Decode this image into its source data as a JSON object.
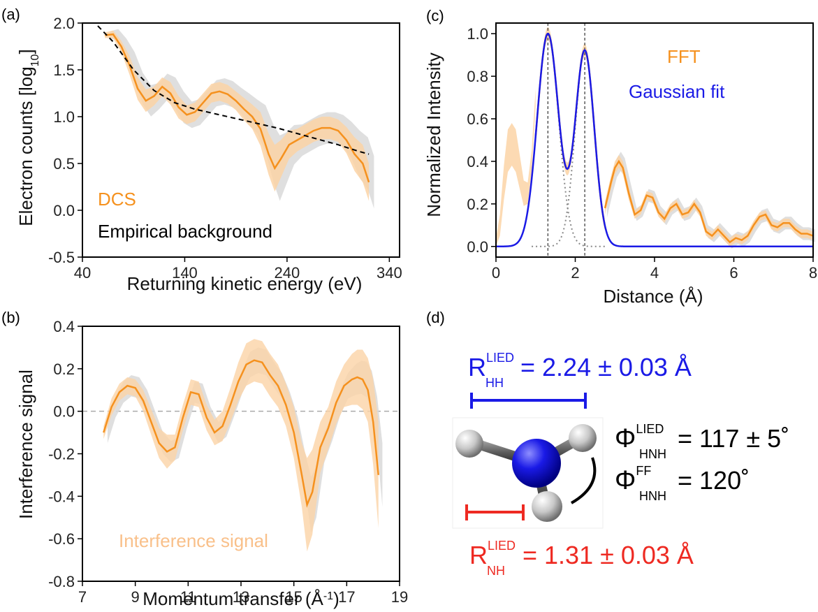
{
  "colors": {
    "orange": "#f5911e",
    "orange_band": "#fbd3a6",
    "gray_band": "#d9d9d9",
    "blue": "#1a1ae6",
    "red": "#ee2a22",
    "black": "#000000",
    "grid_dash": "#999999"
  },
  "panel_labels": {
    "a": "(a)",
    "b": "(b)",
    "c": "(c)",
    "d": "(d)"
  },
  "chart_data": [
    {
      "id": "a",
      "type": "line",
      "xlabel": "Returning kinetic energy (eV)",
      "ylabel_main": "Electron counts [log",
      "ylabel_sub": "10",
      "ylabel_end": "]",
      "xlim": [
        40,
        350
      ],
      "ylim": [
        -0.5,
        2.0
      ],
      "xticks": [
        40,
        140,
        240,
        340
      ],
      "yticks": [
        -0.5,
        0.0,
        0.5,
        1.0,
        1.5,
        2.0
      ],
      "ytick_labels": [
        "-0.5",
        "0.0",
        "0.5",
        "1.0",
        "1.5",
        "2.0"
      ],
      "legend": [
        {
          "label": "DCS",
          "color": "#f5911e"
        },
        {
          "label": "Empirical background",
          "color": "#000000"
        }
      ],
      "series": [
        {
          "name": "DCS",
          "x": [
            62,
            70,
            78,
            86,
            94,
            102,
            110,
            118,
            126,
            134,
            142,
            150,
            158,
            166,
            174,
            182,
            190,
            198,
            206,
            214,
            222,
            228,
            234,
            242,
            250,
            258,
            266,
            274,
            282,
            290,
            298,
            306,
            314,
            320
          ],
          "y": [
            1.87,
            1.88,
            1.75,
            1.55,
            1.3,
            1.17,
            1.22,
            1.32,
            1.25,
            1.1,
            1.02,
            1.05,
            1.15,
            1.25,
            1.27,
            1.24,
            1.17,
            1.08,
            1.0,
            0.87,
            0.6,
            0.45,
            0.55,
            0.7,
            0.75,
            0.8,
            0.85,
            0.88,
            0.88,
            0.85,
            0.75,
            0.6,
            0.5,
            0.3
          ],
          "err": [
            0.03,
            0.04,
            0.06,
            0.1,
            0.12,
            0.12,
            0.1,
            0.1,
            0.12,
            0.12,
            0.1,
            0.1,
            0.1,
            0.1,
            0.1,
            0.1,
            0.1,
            0.12,
            0.13,
            0.18,
            0.22,
            0.25,
            0.2,
            0.15,
            0.12,
            0.12,
            0.12,
            0.12,
            0.12,
            0.12,
            0.14,
            0.18,
            0.2,
            0.2
          ]
        },
        {
          "name": "Empirical background",
          "x": [
            55,
            70,
            90,
            110,
            130,
            150,
            170,
            190,
            210,
            230,
            250,
            270,
            290,
            310,
            320
          ],
          "y": [
            1.97,
            1.8,
            1.5,
            1.28,
            1.15,
            1.08,
            1.03,
            0.98,
            0.93,
            0.88,
            0.82,
            0.76,
            0.7,
            0.63,
            0.6
          ]
        }
      ]
    },
    {
      "id": "b",
      "type": "line",
      "xlabel_main": "Momentum transfer (Å",
      "xlabel_sup": "-1",
      "xlabel_end": ")",
      "ylabel": "Interference signal",
      "xlim": [
        7,
        19
      ],
      "ylim": [
        -0.8,
        0.4
      ],
      "xticks": [
        7,
        9,
        11,
        13,
        15,
        17,
        19
      ],
      "yticks": [
        -0.8,
        -0.6,
        -0.4,
        -0.2,
        0.0,
        0.2,
        0.4
      ],
      "ytick_labels": [
        "-0.8",
        "-0.6",
        "-0.4",
        "-0.2",
        "0.0",
        "0.2",
        "0.4"
      ],
      "legend": [
        {
          "label": "Interference signal",
          "color": "#f9c08a"
        }
      ],
      "series": [
        {
          "name": "Interference signal",
          "x": [
            7.8,
            8.1,
            8.4,
            8.7,
            9.0,
            9.3,
            9.6,
            9.9,
            10.2,
            10.5,
            10.8,
            11.1,
            11.4,
            11.7,
            12.0,
            12.3,
            12.6,
            12.9,
            13.2,
            13.5,
            13.8,
            14.1,
            14.4,
            14.7,
            15.0,
            15.3,
            15.5,
            15.7,
            16.0,
            16.3,
            16.6,
            16.9,
            17.2,
            17.4,
            17.6,
            17.8,
            18.0,
            18.2
          ],
          "y": [
            -0.1,
            0.02,
            0.09,
            0.12,
            0.11,
            0.05,
            -0.05,
            -0.15,
            -0.19,
            -0.17,
            -0.03,
            0.09,
            0.08,
            -0.03,
            -0.1,
            -0.07,
            0.03,
            0.14,
            0.22,
            0.24,
            0.23,
            0.17,
            0.12,
            0.03,
            -0.1,
            -0.3,
            -0.44,
            -0.38,
            -0.17,
            -0.08,
            0.04,
            0.12,
            0.15,
            0.16,
            0.15,
            0.1,
            -0.05,
            -0.3
          ],
          "err": [
            0.03,
            0.04,
            0.04,
            0.04,
            0.04,
            0.05,
            0.06,
            0.07,
            0.08,
            0.06,
            0.06,
            0.06,
            0.06,
            0.06,
            0.06,
            0.07,
            0.08,
            0.09,
            0.1,
            0.1,
            0.1,
            0.1,
            0.1,
            0.1,
            0.12,
            0.15,
            0.22,
            0.2,
            0.12,
            0.1,
            0.1,
            0.1,
            0.12,
            0.13,
            0.14,
            0.15,
            0.2,
            0.25
          ]
        }
      ]
    },
    {
      "id": "c",
      "type": "line",
      "xlabel": "Distance (Å)",
      "ylabel": "Normalized Intensity",
      "xlim": [
        0,
        8
      ],
      "ylim": [
        -0.05,
        1.05
      ],
      "xticks": [
        0,
        2,
        4,
        6,
        8
      ],
      "yticks": [
        0.0,
        0.2,
        0.4,
        0.6,
        0.8,
        1.0
      ],
      "ytick_labels": [
        "0.0",
        "0.2",
        "0.4",
        "0.6",
        "0.8",
        "1.0"
      ],
      "vlines": [
        1.31,
        2.24
      ],
      "legend": [
        {
          "label": "FFT",
          "color": "#f5911e"
        },
        {
          "label": "Gaussian fit",
          "color": "#1a1ae6"
        }
      ],
      "series": [
        {
          "name": "FFT",
          "x": [
            2.75,
            2.9,
            3.0,
            3.1,
            3.2,
            3.35,
            3.5,
            3.65,
            3.8,
            3.95,
            4.1,
            4.25,
            4.4,
            4.55,
            4.7,
            4.85,
            5.0,
            5.15,
            5.3,
            5.45,
            5.6,
            5.75,
            5.9,
            6.05,
            6.2,
            6.35,
            6.5,
            6.65,
            6.8,
            6.95,
            7.1,
            7.25,
            7.4,
            7.55,
            7.7,
            7.85,
            8.0
          ],
          "y": [
            0.18,
            0.3,
            0.37,
            0.4,
            0.37,
            0.25,
            0.15,
            0.17,
            0.24,
            0.23,
            0.16,
            0.13,
            0.18,
            0.2,
            0.15,
            0.16,
            0.2,
            0.16,
            0.07,
            0.05,
            0.08,
            0.05,
            0.02,
            0.04,
            0.03,
            0.05,
            0.1,
            0.14,
            0.15,
            0.1,
            0.09,
            0.11,
            0.11,
            0.08,
            0.06,
            0.06,
            0.05
          ],
          "err": [
            0.03,
            0.03,
            0.03,
            0.03,
            0.03,
            0.03,
            0.02,
            0.02,
            0.02,
            0.02,
            0.02,
            0.02,
            0.02,
            0.02,
            0.02,
            0.02,
            0.02,
            0.02,
            0.02,
            0.02,
            0.02,
            0.02,
            0.02,
            0.02,
            0.02,
            0.02,
            0.02,
            0.02,
            0.02,
            0.02,
            0.02,
            0.02,
            0.02,
            0.02,
            0.02,
            0.02,
            0.02
          ]
        },
        {
          "name": "FFT band low-r",
          "x": [
            0.0,
            0.1,
            0.2,
            0.3,
            0.4,
            0.5,
            0.6,
            0.7,
            0.8,
            0.9,
            1.0
          ],
          "y": [
            0.02,
            0.1,
            0.3,
            0.45,
            0.48,
            0.45,
            0.35,
            0.25,
            0.25,
            0.4,
            0.7
          ],
          "err": [
            0.02,
            0.05,
            0.08,
            0.1,
            0.1,
            0.1,
            0.08,
            0.06,
            0.05,
            0.05,
            0.04
          ]
        },
        {
          "name": "Gaussian fit",
          "fit": {
            "mu1": 1.31,
            "sigma1": 0.27,
            "a1": 1.0,
            "mu2": 2.24,
            "sigma2": 0.24,
            "a2": 0.92,
            "xmax": 8.0
          }
        }
      ]
    }
  ],
  "molecule": {
    "r_hh_symbol": "R",
    "r_hh_sup": "LIED",
    "r_hh_sub": "HH",
    "r_hh_value": "= 2.24 ± 0.03 Å",
    "phi_lied_symbol": "Φ",
    "phi_lied_sup": "LIED",
    "phi_lied_sub": "HNH",
    "phi_lied_value": "= 117  ± 5˚",
    "phi_ff_symbol": "Φ",
    "phi_ff_sup": "FF",
    "phi_ff_sub": "HNH",
    "phi_ff_value": "= 120˚",
    "r_nh_symbol": "R",
    "r_nh_sup": "LIED",
    "r_nh_sub": "NH",
    "r_nh_value": "= 1.31 ± 0.03 Å"
  }
}
